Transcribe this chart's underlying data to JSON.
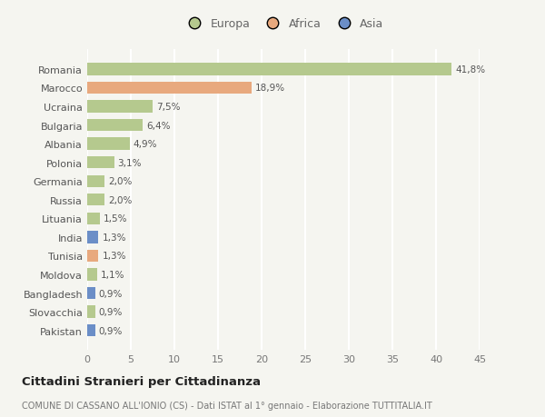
{
  "countries": [
    "Romania",
    "Marocco",
    "Ucraina",
    "Bulgaria",
    "Albania",
    "Polonia",
    "Germania",
    "Russia",
    "Lituania",
    "India",
    "Tunisia",
    "Moldova",
    "Bangladesh",
    "Slovacchia",
    "Pakistan"
  ],
  "values": [
    41.8,
    18.9,
    7.5,
    6.4,
    4.9,
    3.1,
    2.0,
    2.0,
    1.5,
    1.3,
    1.3,
    1.1,
    0.9,
    0.9,
    0.9
  ],
  "labels": [
    "41,8%",
    "18,9%",
    "7,5%",
    "6,4%",
    "4,9%",
    "3,1%",
    "2,0%",
    "2,0%",
    "1,5%",
    "1,3%",
    "1,3%",
    "1,1%",
    "0,9%",
    "0,9%",
    "0,9%"
  ],
  "continents": [
    "Europa",
    "Africa",
    "Europa",
    "Europa",
    "Europa",
    "Europa",
    "Europa",
    "Europa",
    "Europa",
    "Asia",
    "Africa",
    "Europa",
    "Asia",
    "Europa",
    "Asia"
  ],
  "colors": {
    "Europa": "#b5c98e",
    "Africa": "#e8a97e",
    "Asia": "#6b8ec7"
  },
  "title": "Cittadini Stranieri per Cittadinanza",
  "subtitle": "COMUNE DI CASSANO ALL'IONIO (CS) - Dati ISTAT al 1° gennaio - Elaborazione TUTTITALIA.IT",
  "xlim": [
    0,
    45
  ],
  "xticks": [
    0,
    5,
    10,
    15,
    20,
    25,
    30,
    35,
    40,
    45
  ],
  "background_color": "#f5f5f0",
  "grid_color": "#ffffff",
  "bar_height": 0.65,
  "label_fontsize": 7.5,
  "ytick_fontsize": 8,
  "xtick_fontsize": 8,
  "title_fontsize": 9.5,
  "subtitle_fontsize": 7
}
